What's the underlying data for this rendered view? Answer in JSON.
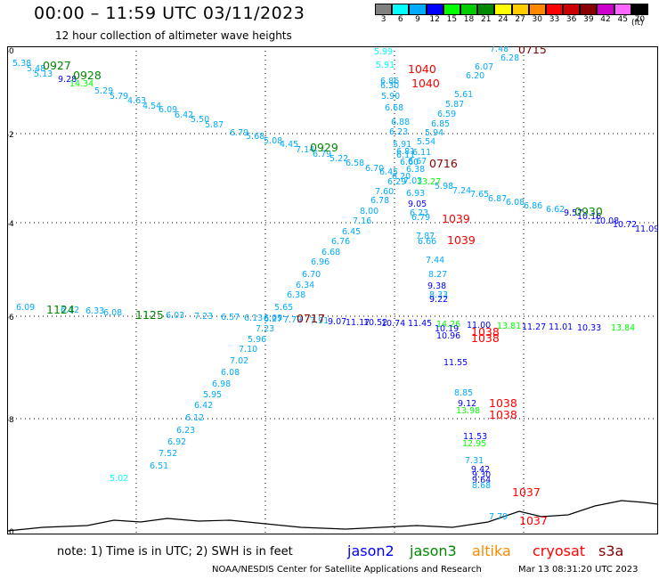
{
  "header": {
    "title": "00:00 – 11:59 UTC 03/11/2023",
    "subtitle": "12 hour collection of altimeter wave heights"
  },
  "legend": {
    "unit": "(ft)",
    "items": [
      {
        "label": "3",
        "color": "#808080"
      },
      {
        "label": "6",
        "color": "#00ffff"
      },
      {
        "label": "9",
        "color": "#00aaff"
      },
      {
        "label": "12",
        "color": "#0000ff"
      },
      {
        "label": "15",
        "color": "#00ff00"
      },
      {
        "label": "18",
        "color": "#00cc00"
      },
      {
        "label": "21",
        "color": "#008800"
      },
      {
        "label": "24",
        "color": "#ffff00"
      },
      {
        "label": "27",
        "color": "#ffcc00"
      },
      {
        "label": "30",
        "color": "#ff8800"
      },
      {
        "label": "33",
        "color": "#ff0000"
      },
      {
        "label": "36",
        "color": "#cc0000"
      },
      {
        "label": "39",
        "color": "#880000"
      },
      {
        "label": "42",
        "color": "#cc00cc"
      },
      {
        "label": "45",
        "color": "#ff66ff"
      },
      {
        "label": "70",
        "color": "#000000"
      }
    ]
  },
  "map": {
    "lon_range": [
      15,
      30
    ],
    "lat_range": [
      -70,
      -60
    ],
    "x_ticks": [
      "15",
      "18",
      "21",
      "24",
      "27",
      "30"
    ],
    "y_ticks": [
      "-60",
      "-62",
      "-64",
      "-66",
      "-68",
      "-70"
    ],
    "tracks": [
      {
        "points": [
          {
            "t": "5.38",
            "c": "#00aaff"
          },
          {
            "t": "5.48",
            "c": "#00aaff"
          },
          {
            "t": "5.13",
            "c": "#00aaff"
          },
          {
            "t": "9.28",
            "c": "#0000ff"
          },
          {
            "t": "14.34",
            "c": "#00ff00"
          },
          {
            "t": "5.29",
            "c": "#00aaff"
          },
          {
            "t": "5.79",
            "c": "#00aaff"
          },
          {
            "t": "4.63",
            "c": "#00aaff"
          },
          {
            "t": "4.54",
            "c": "#00aaff"
          },
          {
            "t": "6.09",
            "c": "#00aaff"
          },
          {
            "t": "6.42",
            "c": "#00aaff"
          },
          {
            "t": "5.50",
            "c": "#00aaff"
          },
          {
            "t": "5.87",
            "c": "#00aaff"
          },
          {
            "t": "6.79",
            "c": "#00aaff"
          },
          {
            "t": "5.68",
            "c": "#00aaff"
          },
          {
            "t": "5.08",
            "c": "#00aaff"
          },
          {
            "t": "4.45",
            "c": "#00aaff"
          },
          {
            "t": "7.14",
            "c": "#00aaff"
          },
          {
            "t": "6.79",
            "c": "#00aaff"
          },
          {
            "t": "5.22",
            "c": "#00aaff"
          },
          {
            "t": "6.58",
            "c": "#00aaff"
          },
          {
            "t": "6.70",
            "c": "#00aaff"
          },
          {
            "t": "6.45",
            "c": "#00aaff"
          },
          {
            "t": "6.20",
            "c": "#00aaff"
          },
          {
            "t": "7.03",
            "c": "#00aaff"
          },
          {
            "t": "5.98",
            "c": "#00aaff"
          },
          {
            "t": "7.24",
            "c": "#00aaff"
          },
          {
            "t": "7.65",
            "c": "#00aaff"
          },
          {
            "t": "6.87",
            "c": "#00aaff"
          },
          {
            "t": "6.08",
            "c": "#00aaff"
          },
          {
            "t": "6.86",
            "c": "#00aaff"
          },
          {
            "t": "6.62",
            "c": "#00aaff"
          },
          {
            "t": "9.57",
            "c": "#0000ff"
          },
          {
            "t": "10.16",
            "c": "#0000ff"
          },
          {
            "t": "10.08",
            "c": "#0000ff"
          },
          {
            "t": "10.72",
            "c": "#0000ff"
          },
          {
            "t": "11.09",
            "c": "#0000ff"
          }
        ]
      },
      {
        "points": [
          {
            "t": "5.99",
            "c": "#00ffff"
          },
          {
            "t": "5.91",
            "c": "#00ffff"
          },
          {
            "t": "6.86",
            "c": "#00aaff"
          },
          {
            "t": "6.30",
            "c": "#00aaff"
          },
          {
            "t": "5.90",
            "c": "#00aaff"
          },
          {
            "t": "6.68",
            "c": "#00aaff"
          },
          {
            "t": "6.88",
            "c": "#00aaff"
          },
          {
            "t": "6.23",
            "c": "#00aaff"
          },
          {
            "t": "5.91",
            "c": "#00aaff"
          },
          {
            "t": "6.81",
            "c": "#00aaff"
          },
          {
            "t": "6.11",
            "c": "#00aaff"
          },
          {
            "t": "6.60",
            "c": "#00aaff"
          },
          {
            "t": "6.29",
            "c": "#00aaff"
          },
          {
            "t": "6.93",
            "c": "#00aaff"
          },
          {
            "t": "9.05",
            "c": "#0000ff"
          },
          {
            "t": "6.23",
            "c": "#00aaff"
          },
          {
            "t": "6.79",
            "c": "#00aaff"
          },
          {
            "t": "7.87",
            "c": "#00aaff"
          },
          {
            "t": "6.66",
            "c": "#00aaff"
          },
          {
            "t": "7.44",
            "c": "#00aaff"
          },
          {
            "t": "8.27",
            "c": "#00aaff"
          },
          {
            "t": "9.38",
            "c": "#0000ff"
          },
          {
            "t": "8.33",
            "c": "#00aaff"
          },
          {
            "t": "9.22",
            "c": "#0000ff"
          }
        ]
      },
      {
        "points": [
          {
            "t": "7.48",
            "c": "#00aaff"
          },
          {
            "t": "6.28",
            "c": "#00aaff"
          },
          {
            "t": "6.07",
            "c": "#00aaff"
          },
          {
            "t": "6.20",
            "c": "#00aaff"
          },
          {
            "t": "5.61",
            "c": "#00aaff"
          },
          {
            "t": "5.87",
            "c": "#00aaff"
          },
          {
            "t": "6.59",
            "c": "#00aaff"
          },
          {
            "t": "6.85",
            "c": "#00aaff"
          },
          {
            "t": "5.94",
            "c": "#00aaff"
          },
          {
            "t": "5.54",
            "c": "#00aaff"
          },
          {
            "t": "6.11",
            "c": "#00aaff"
          },
          {
            "t": "6.67",
            "c": "#00aaff"
          },
          {
            "t": "6.38",
            "c": "#00aaff"
          },
          {
            "t": "13.27",
            "c": "#00ff00"
          },
          {
            "t": "7.60",
            "c": "#00aaff"
          },
          {
            "t": "6.78",
            "c": "#00aaff"
          },
          {
            "t": "8.00",
            "c": "#00aaff"
          },
          {
            "t": "7.16",
            "c": "#00aaff"
          },
          {
            "t": "6.45",
            "c": "#00aaff"
          },
          {
            "t": "6.76",
            "c": "#00aaff"
          },
          {
            "t": "6.68",
            "c": "#00aaff"
          },
          {
            "t": "6.96",
            "c": "#00aaff"
          },
          {
            "t": "6.70",
            "c": "#00aaff"
          },
          {
            "t": "6.34",
            "c": "#00aaff"
          },
          {
            "t": "6.38",
            "c": "#00aaff"
          },
          {
            "t": "5.65",
            "c": "#00aaff"
          },
          {
            "t": "6.09",
            "c": "#00aaff"
          },
          {
            "t": "7.23",
            "c": "#00aaff"
          },
          {
            "t": "5.96",
            "c": "#00aaff"
          },
          {
            "t": "7.10",
            "c": "#00aaff"
          },
          {
            "t": "7.02",
            "c": "#00aaff"
          },
          {
            "t": "6.08",
            "c": "#00aaff"
          },
          {
            "t": "6.98",
            "c": "#00aaff"
          },
          {
            "t": "5.95",
            "c": "#00aaff"
          },
          {
            "t": "6.42",
            "c": "#00aaff"
          },
          {
            "t": "6.12",
            "c": "#00aaff"
          },
          {
            "t": "6.23",
            "c": "#00aaff"
          },
          {
            "t": "6.92",
            "c": "#00aaff"
          },
          {
            "t": "7.52",
            "c": "#00aaff"
          },
          {
            "t": "6.51",
            "c": "#00aaff"
          },
          {
            "t": "5.02",
            "c": "#00ffff"
          }
        ]
      },
      {
        "points": [
          {
            "t": "6.09",
            "c": "#00aaff"
          },
          {
            "t": "6.12",
            "c": "#00aaff"
          },
          {
            "t": "6.33",
            "c": "#00aaff"
          },
          {
            "t": "6.08",
            "c": "#00aaff"
          },
          {
            "t": "6.03",
            "c": "#00aaff"
          },
          {
            "t": "7.23",
            "c": "#00aaff"
          },
          {
            "t": "6.57",
            "c": "#00aaff"
          },
          {
            "t": "6.13",
            "c": "#00aaff"
          },
          {
            "t": "6.27",
            "c": "#00aaff"
          },
          {
            "t": "7.79",
            "c": "#00aaff"
          },
          {
            "t": "7.91",
            "c": "#00aaff"
          },
          {
            "t": "9.07",
            "c": "#0000ff"
          },
          {
            "t": "11.17",
            "c": "#0000ff"
          },
          {
            "t": "10.52",
            "c": "#0000ff"
          },
          {
            "t": "10.74",
            "c": "#0000ff"
          },
          {
            "t": "11.45",
            "c": "#0000ff"
          },
          {
            "t": "14.26",
            "c": "#00ff00"
          },
          {
            "t": "11.00",
            "c": "#0000ff"
          },
          {
            "t": "13.81",
            "c": "#00ff00"
          },
          {
            "t": "11.27",
            "c": "#0000ff"
          },
          {
            "t": "11.01",
            "c": "#0000ff"
          },
          {
            "t": "10.33",
            "c": "#0000ff"
          },
          {
            "t": "13.84",
            "c": "#00ff00"
          }
        ]
      },
      {
        "points": [
          {
            "t": "10.19",
            "c": "#0000ff"
          },
          {
            "t": "10.96",
            "c": "#0000ff"
          },
          {
            "t": "11.55",
            "c": "#0000ff"
          },
          {
            "t": "8.85",
            "c": "#00aaff"
          },
          {
            "t": "9.12",
            "c": "#0000ff"
          },
          {
            "t": "13.98",
            "c": "#00ff00"
          },
          {
            "t": "11.53",
            "c": "#0000ff"
          },
          {
            "t": "12.95",
            "c": "#00ff00"
          },
          {
            "t": "7.31",
            "c": "#00aaff"
          },
          {
            "t": "9.42",
            "c": "#0000ff"
          },
          {
            "t": "9.30",
            "c": "#0000ff"
          },
          {
            "t": "9.64",
            "c": "#0000ff"
          },
          {
            "t": "8.68",
            "c": "#00aaff"
          },
          {
            "t": "7.79",
            "c": "#00aaff"
          }
        ]
      }
    ],
    "time_labels": [
      {
        "t": "0927",
        "c": "#008800"
      },
      {
        "t": "0928",
        "c": "#008800"
      },
      {
        "t": "0929",
        "c": "#008800"
      },
      {
        "t": "0930",
        "c": "#008800"
      },
      {
        "t": "1124",
        "c": "#008800"
      },
      {
        "t": "1125",
        "c": "#008800"
      },
      {
        "t": "1040",
        "c": "#ff0000"
      },
      {
        "t": "1040",
        "c": "#ff0000"
      },
      {
        "t": "0715",
        "c": "#880000"
      },
      {
        "t": "0716",
        "c": "#880000"
      },
      {
        "t": "0717",
        "c": "#880000"
      },
      {
        "t": "1039",
        "c": "#ff0000"
      },
      {
        "t": "1039",
        "c": "#ff0000"
      },
      {
        "t": "1038",
        "c": "#ff0000"
      },
      {
        "t": "1038",
        "c": "#ff0000"
      },
      {
        "t": "1038",
        "c": "#ff0000"
      },
      {
        "t": "1038",
        "c": "#ff0000"
      },
      {
        "t": "1037",
        "c": "#ff0000"
      },
      {
        "t": "1037",
        "c": "#ff0000"
      }
    ]
  },
  "footer": {
    "note": "note: 1) Time is in UTC; 2) SWH is in feet",
    "missions": [
      {
        "label": "jason2",
        "color": "#0000ff"
      },
      {
        "label": "jason3",
        "color": "#008800"
      },
      {
        "label": "altika",
        "color": "#ff8800"
      },
      {
        "label": "cryosat",
        "color": "#ff0000"
      },
      {
        "label": "s3a",
        "color": "#880000"
      }
    ],
    "credit": "NOAA/NESDIS Center for Satellite Applications and Research",
    "timestamp": "Mar 13 08:31:20 UTC 2023"
  }
}
